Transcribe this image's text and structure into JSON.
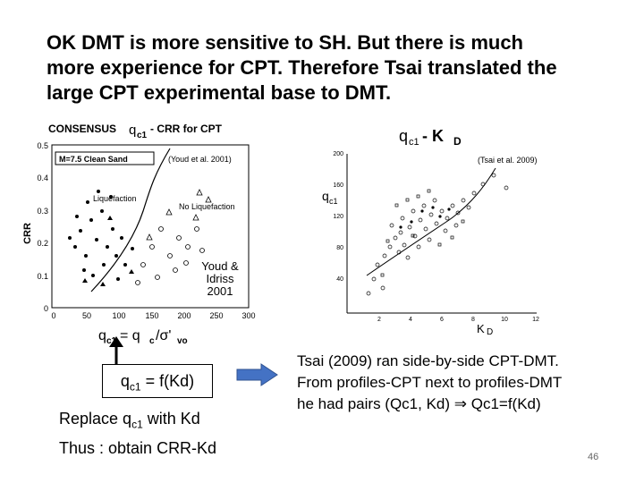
{
  "title": {
    "line1": "OK DMT is more sensitive to SH. But there is much",
    "line2": "more experience for CPT. Therefore Tsai translated the",
    "line3": "large CPT experimental base to DMT."
  },
  "left_chart": {
    "header": "CONSENSUS",
    "header_formula": "q",
    "header_sub": "c1",
    "header_rest": "- CRR  for CPT",
    "legend_box": "M=7.5  Clean Sand",
    "ref": "(Youd et al. 2001)",
    "liquefaction": "Liquefaction",
    "no_liquefaction": "No Liquefaction",
    "ylabel": "CRR",
    "yticks": [
      "0.5",
      "0.4",
      "0.3",
      "0.2",
      "0.1",
      "0"
    ],
    "xticks": [
      "0",
      "50",
      "100",
      "150",
      "200",
      "250",
      "300"
    ],
    "xlabel_q": "q",
    "xlabel_sub": "c1",
    "xlabel_eq": "= q",
    "xlabel_sub2": "c",
    "xlabel_rest": "/σ'",
    "xlabel_sub3": "vo",
    "youd_1": "Youd &",
    "youd_2": "Idriss",
    "youd_3": "2001"
  },
  "right_chart": {
    "title_q": "q",
    "title_sub": "c1",
    "title_rest": "- K",
    "title_sub2": "D",
    "ref": "(Tsai et al. 2009)",
    "ylabel_q": "q",
    "ylabel_sub": "c1",
    "yticks": [
      "200",
      "160",
      "120",
      "80",
      "40"
    ],
    "xticks": [
      "2",
      "4",
      "6",
      "8",
      "10",
      "12"
    ],
    "xlabel_k": "K",
    "xlabel_sub": "D"
  },
  "qc1_box": {
    "q": "q",
    "sub": "c1",
    "rest": " = f(Kd)"
  },
  "replace": {
    "line1_a": "Replace q",
    "line1_sub": "c1",
    "line1_b": " with Kd",
    "line2": "Thus : obtain CRR-Kd"
  },
  "tsai": {
    "line1": "Tsai (2009)  ran side-by-side CPT-DMT.",
    "line2": "From profiles-CPT next to profiles-DMT",
    "line3": "he had pairs (Qc1, Kd)  ⇒ Qc1=f(Kd)"
  },
  "page_number": "46",
  "colors": {
    "arrow_blue": "#4472c4"
  }
}
